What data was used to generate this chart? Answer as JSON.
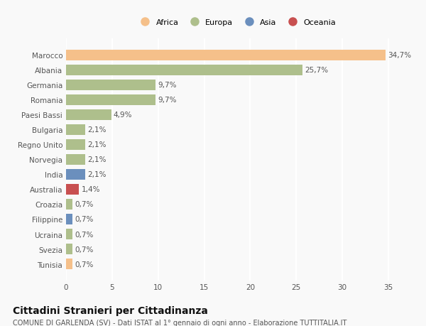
{
  "countries": [
    "Marocco",
    "Albania",
    "Germania",
    "Romania",
    "Paesi Bassi",
    "Bulgaria",
    "Regno Unito",
    "Norvegia",
    "India",
    "Australia",
    "Croazia",
    "Filippine",
    "Ucraina",
    "Svezia",
    "Tunisia"
  ],
  "values": [
    34.7,
    25.7,
    9.7,
    9.7,
    4.9,
    2.1,
    2.1,
    2.1,
    2.1,
    1.4,
    0.7,
    0.7,
    0.7,
    0.7,
    0.7
  ],
  "labels": [
    "34,7%",
    "25,7%",
    "9,7%",
    "9,7%",
    "4,9%",
    "2,1%",
    "2,1%",
    "2,1%",
    "2,1%",
    "1,4%",
    "0,7%",
    "0,7%",
    "0,7%",
    "0,7%",
    "0,7%"
  ],
  "continents": [
    "Africa",
    "Europa",
    "Europa",
    "Europa",
    "Europa",
    "Europa",
    "Europa",
    "Europa",
    "Asia",
    "Oceania",
    "Europa",
    "Asia",
    "Europa",
    "Europa",
    "Africa"
  ],
  "colors": {
    "Africa": "#F5C08A",
    "Europa": "#AEBF8C",
    "Asia": "#6B8FBD",
    "Oceania": "#C85050"
  },
  "title": "Cittadini Stranieri per Cittadinanza",
  "subtitle": "COMUNE DI GARLENDA (SV) - Dati ISTAT al 1° gennaio di ogni anno - Elaborazione TUTTITALIA.IT",
  "xlim": [
    0,
    37
  ],
  "xticks": [
    0,
    5,
    10,
    15,
    20,
    25,
    30,
    35
  ],
  "background_color": "#f9f9f9",
  "grid_color": "#ffffff",
  "bar_height": 0.72,
  "label_fontsize": 7.5,
  "tick_fontsize": 7.5,
  "title_fontsize": 10,
  "subtitle_fontsize": 7,
  "legend_order": [
    "Africa",
    "Europa",
    "Asia",
    "Oceania"
  ]
}
